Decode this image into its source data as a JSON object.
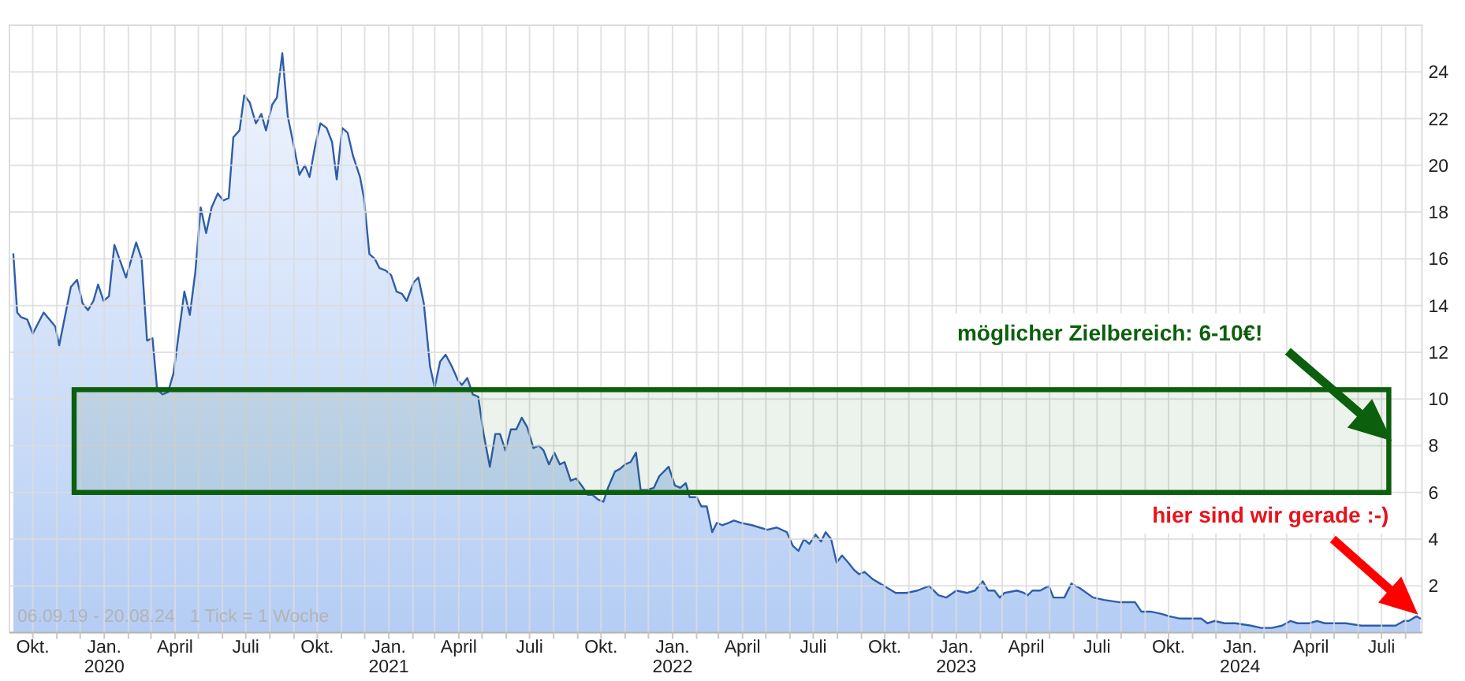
{
  "chart_data": {
    "type": "area",
    "x": [
      "2019-09-06",
      "2019-09-11",
      "2019-09-16",
      "2019-09-24",
      "2019-10-01",
      "2019-10-15",
      "2019-10-30",
      "2019-11-04",
      "2019-11-19",
      "2019-11-27",
      "2019-12-04",
      "2019-12-11",
      "2019-12-18",
      "2019-12-24",
      "2019-12-31",
      "2020-01-07",
      "2020-01-14",
      "2020-01-29",
      "2020-02-11",
      "2020-02-18",
      "2020-02-25",
      "2020-03-03",
      "2020-03-09",
      "2020-03-16",
      "2020-03-23",
      "2020-03-30",
      "2020-04-13",
      "2020-04-20",
      "2020-04-27",
      "2020-05-04",
      "2020-05-11",
      "2020-05-18",
      "2020-05-26",
      "2020-06-02",
      "2020-06-09",
      "2020-06-15",
      "2020-06-23",
      "2020-06-29",
      "2020-07-06",
      "2020-07-14",
      "2020-07-21",
      "2020-07-27",
      "2020-08-04",
      "2020-08-10",
      "2020-08-17",
      "2020-08-24",
      "2020-09-01",
      "2020-09-08",
      "2020-09-15",
      "2020-09-21",
      "2020-09-28",
      "2020-10-05",
      "2020-10-13",
      "2020-10-20",
      "2020-10-26",
      "2020-11-02",
      "2020-11-09",
      "2020-11-16",
      "2020-11-25",
      "2020-11-30",
      "2020-12-07",
      "2020-12-14",
      "2020-12-20",
      "2020-12-28",
      "2021-01-04",
      "2021-01-11",
      "2021-01-18",
      "2021-01-24",
      "2021-02-02",
      "2021-02-08",
      "2021-02-15",
      "2021-02-23",
      "2021-03-01",
      "2021-03-08",
      "2021-03-15",
      "2021-03-23",
      "2021-03-31",
      "2021-04-05",
      "2021-04-12",
      "2021-04-19",
      "2021-04-26",
      "2021-05-03",
      "2021-05-11",
      "2021-05-18",
      "2021-05-24",
      "2021-05-31",
      "2021-06-07",
      "2021-06-14",
      "2021-06-21",
      "2021-06-28",
      "2021-07-06",
      "2021-07-13",
      "2021-07-19",
      "2021-07-26",
      "2021-08-02",
      "2021-08-09",
      "2021-08-15",
      "2021-08-23",
      "2021-08-30",
      "2021-09-06",
      "2021-09-14",
      "2021-09-20",
      "2021-09-27",
      "2021-10-04",
      "2021-10-10",
      "2021-10-19",
      "2021-10-25",
      "2021-11-01",
      "2021-11-08",
      "2021-11-15",
      "2021-11-21",
      "2021-11-28",
      "2021-12-08",
      "2021-12-15",
      "2021-12-27",
      "2022-01-04",
      "2022-01-11",
      "2022-01-18",
      "2022-01-23",
      "2022-02-01",
      "2022-02-07",
      "2022-02-14",
      "2022-02-21",
      "2022-02-27",
      "2022-03-06",
      "2022-03-14",
      "2022-03-21",
      "2022-03-30",
      "2022-04-13",
      "2022-04-23",
      "2022-05-03",
      "2022-05-15",
      "2022-05-28",
      "2022-06-05",
      "2022-06-12",
      "2022-06-19",
      "2022-06-26",
      "2022-07-04",
      "2022-07-11",
      "2022-07-17",
      "2022-07-24",
      "2022-07-31",
      "2022-08-07",
      "2022-08-15",
      "2022-08-22",
      "2022-08-29",
      "2022-09-05",
      "2022-09-15",
      "2022-09-25",
      "2022-10-05",
      "2022-10-15",
      "2022-10-29",
      "2022-11-12",
      "2022-11-27",
      "2022-12-09",
      "2022-12-19",
      "2023-01-01",
      "2023-01-15",
      "2023-01-25",
      "2023-02-04",
      "2023-02-11",
      "2023-02-19",
      "2023-02-26",
      "2023-03-04",
      "2023-03-20",
      "2023-03-29",
      "2023-04-03",
      "2023-04-09",
      "2023-04-19",
      "2023-04-30",
      "2023-05-06",
      "2023-05-20",
      "2023-05-29",
      "2023-06-09",
      "2023-06-26",
      "2023-07-10",
      "2023-07-30",
      "2023-08-09",
      "2023-08-19",
      "2023-08-27",
      "2023-09-08",
      "2023-09-22",
      "2023-10-02",
      "2023-10-16",
      "2023-10-30",
      "2023-11-12",
      "2023-11-20",
      "2023-11-29",
      "2023-12-12",
      "2023-12-26",
      "2024-01-15",
      "2024-01-28",
      "2024-02-11",
      "2024-02-24",
      "2024-03-06",
      "2024-03-15",
      "2024-03-30",
      "2024-04-09",
      "2024-04-19",
      "2024-05-16",
      "2024-06-05",
      "2024-07-02",
      "2024-07-19",
      "2024-07-30",
      "2024-08-05",
      "2024-08-15",
      "2024-08-20"
    ],
    "series": [
      {
        "color": "#2f5da8",
        "values": [
          16.2,
          13.7,
          13.5,
          13.4,
          12.8,
          13.7,
          13.1,
          12.3,
          14.8,
          15.1,
          14.1,
          13.8,
          14.2,
          14.9,
          14.2,
          14.4,
          16.6,
          15.2,
          16.7,
          16.0,
          12.5,
          12.6,
          10.4,
          10.2,
          10.3,
          11.1,
          14.6,
          13.6,
          15.4,
          18.2,
          17.1,
          18.2,
          18.8,
          18.5,
          18.6,
          21.2,
          21.5,
          23.0,
          22.7,
          21.8,
          22.2,
          21.5,
          22.6,
          22.9,
          24.8,
          22.1,
          20.8,
          19.6,
          20.0,
          19.5,
          20.8,
          21.8,
          21.6,
          21.0,
          19.4,
          21.6,
          21.4,
          20.4,
          19.5,
          18.6,
          16.2,
          16.0,
          15.6,
          15.5,
          15.3,
          14.6,
          14.5,
          14.2,
          15.0,
          15.2,
          14.1,
          11.4,
          10.5,
          11.6,
          11.9,
          11.4,
          10.8,
          10.6,
          10.9,
          10.2,
          10.1,
          8.5,
          7.1,
          8.5,
          8.5,
          7.8,
          8.7,
          8.7,
          9.2,
          8.8,
          7.9,
          8.0,
          7.8,
          7.2,
          7.7,
          7.2,
          7.3,
          6.5,
          6.6,
          6.3,
          5.9,
          5.9,
          5.7,
          5.6,
          6.2,
          6.9,
          7.0,
          7.2,
          7.3,
          7.7,
          6.1,
          6.1,
          6.2,
          6.7,
          7.1,
          6.3,
          6.2,
          6.4,
          5.8,
          5.8,
          5.4,
          5.4,
          4.3,
          4.7,
          4.6,
          4.7,
          4.8,
          4.7,
          4.6,
          4.5,
          4.4,
          4.5,
          4.3,
          3.7,
          3.5,
          4.0,
          3.8,
          4.2,
          3.9,
          4.3,
          4.0,
          3.0,
          3.3,
          3.0,
          2.7,
          2.5,
          2.6,
          2.3,
          2.1,
          1.9,
          1.7,
          1.7,
          1.8,
          2.0,
          1.6,
          1.5,
          1.8,
          1.7,
          1.8,
          2.2,
          1.8,
          1.8,
          1.5,
          1.7,
          1.8,
          1.7,
          1.6,
          1.8,
          1.8,
          2.0,
          1.5,
          1.5,
          2.1,
          1.9,
          1.5,
          1.4,
          1.3,
          1.3,
          1.3,
          0.9,
          0.9,
          0.8,
          0.7,
          0.6,
          0.6,
          0.6,
          0.4,
          0.5,
          0.4,
          0.4,
          0.3,
          0.2,
          0.2,
          0.3,
          0.5,
          0.4,
          0.4,
          0.5,
          0.4,
          0.4,
          0.3,
          0.3,
          0.3,
          0.5,
          0.5,
          0.7,
          0.6
        ]
      }
    ],
    "xlim": [
      "2019-09-01",
      "2024-08-22"
    ],
    "ylim": [
      0,
      26
    ],
    "xticks": [
      {
        "value": "2019-10",
        "label": "Okt."
      },
      {
        "value": "2019-11",
        "label": null
      },
      {
        "value": "2019-12",
        "label": null
      },
      {
        "value": "2020-01",
        "label": "Jan.\n2020"
      },
      {
        "value": "2020-02",
        "label": null
      },
      {
        "value": "2020-03",
        "label": null
      },
      {
        "value": "2020-04",
        "label": "April"
      },
      {
        "value": "2020-05",
        "label": null
      },
      {
        "value": "2020-06",
        "label": null
      },
      {
        "value": "2020-07",
        "label": "Juli"
      },
      {
        "value": "2020-08",
        "label": null
      },
      {
        "value": "2020-09",
        "label": null
      },
      {
        "value": "2020-10",
        "label": "Okt."
      },
      {
        "value": "2020-11",
        "label": null
      },
      {
        "value": "2020-12",
        "label": null
      },
      {
        "value": "2021-01",
        "label": "Jan.\n2021"
      },
      {
        "value": "2021-02",
        "label": null
      },
      {
        "value": "2021-03",
        "label": null
      },
      {
        "value": "2021-04",
        "label": "April"
      },
      {
        "value": "2021-05",
        "label": null
      },
      {
        "value": "2021-06",
        "label": null
      },
      {
        "value": "2021-07",
        "label": "Juli"
      },
      {
        "value": "2021-08",
        "label": null
      },
      {
        "value": "2021-09",
        "label": null
      },
      {
        "value": "2021-10",
        "label": "Okt."
      },
      {
        "value": "2021-11",
        "label": null
      },
      {
        "value": "2021-12",
        "label": null
      },
      {
        "value": "2022-01",
        "label": "Jan.\n2022"
      },
      {
        "value": "2022-02",
        "label": null
      },
      {
        "value": "2022-03",
        "label": null
      },
      {
        "value": "2022-04",
        "label": "April"
      },
      {
        "value": "2022-05",
        "label": null
      },
      {
        "value": "2022-06",
        "label": null
      },
      {
        "value": "2022-07",
        "label": "Juli"
      },
      {
        "value": "2022-08",
        "label": null
      },
      {
        "value": "2022-09",
        "label": null
      },
      {
        "value": "2022-10",
        "label": "Okt."
      },
      {
        "value": "2022-11",
        "label": null
      },
      {
        "value": "2022-12",
        "label": null
      },
      {
        "value": "2023-01",
        "label": "Jan.\n2023"
      },
      {
        "value": "2023-02",
        "label": null
      },
      {
        "value": "2023-03",
        "label": null
      },
      {
        "value": "2023-04",
        "label": "April"
      },
      {
        "value": "2023-05",
        "label": null
      },
      {
        "value": "2023-06",
        "label": null
      },
      {
        "value": "2023-07",
        "label": "Juli"
      },
      {
        "value": "2023-08",
        "label": null
      },
      {
        "value": "2023-09",
        "label": null
      },
      {
        "value": "2023-10",
        "label": "Okt."
      },
      {
        "value": "2023-11",
        "label": null
      },
      {
        "value": "2023-12",
        "label": null
      },
      {
        "value": "2024-01",
        "label": "Jan.\n2024"
      },
      {
        "value": "2024-02",
        "label": null
      },
      {
        "value": "2024-03",
        "label": null
      },
      {
        "value": "2024-04",
        "label": "April"
      },
      {
        "value": "2024-05",
        "label": null
      },
      {
        "value": "2024-06",
        "label": null
      },
      {
        "value": "2024-07",
        "label": "Juli"
      },
      {
        "value": "2024-08",
        "label": null
      }
    ],
    "yticks": [
      2,
      4,
      6,
      8,
      10,
      12,
      14,
      16,
      18,
      20,
      22,
      24
    ],
    "grid": true,
    "bands": [
      {
        "axis": "y",
        "from": 6,
        "to": 10.4,
        "label": "möglicher Zielbereich: 6-10€!",
        "color": "#0c5f0c"
      }
    ],
    "annotations": [
      "06.09.19 - 20.08.24   1 Tick = 1 Woche",
      "hier sind wir gerade :-)"
    ]
  }
}
